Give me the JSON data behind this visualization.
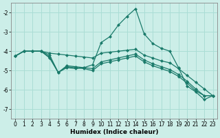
{
  "xlabel": "Humidex (Indice chaleur)",
  "bg_color": "#cceee8",
  "grid_color": "#aaddd5",
  "line_color": "#1a7a6a",
  "xlim": [
    -0.5,
    23.5
  ],
  "ylim": [
    -7.5,
    -1.5
  ],
  "yticks": [
    -7,
    -6,
    -5,
    -4,
    -3,
    -2
  ],
  "xticks": [
    0,
    1,
    2,
    3,
    4,
    5,
    6,
    7,
    8,
    9,
    10,
    11,
    12,
    13,
    14,
    15,
    16,
    17,
    18,
    19,
    20,
    21,
    22,
    23
  ],
  "series": [
    {
      "x": [
        0,
        1,
        2,
        3,
        4,
        5,
        6,
        7,
        8,
        9,
        10,
        11,
        12,
        13,
        14,
        15,
        16,
        17,
        18,
        19,
        20,
        21,
        22,
        23
      ],
      "y": [
        -4.25,
        -4.0,
        -4.0,
        -4.0,
        -4.2,
        -5.1,
        -4.85,
        -4.9,
        -4.85,
        -4.7,
        -3.55,
        -3.25,
        -2.65,
        -2.2,
        -1.8,
        -3.1,
        -3.6,
        -3.85,
        -4.0,
        -4.85,
        -5.8,
        -6.1,
        -6.5,
        -6.3
      ]
    },
    {
      "x": [
        0,
        1,
        2,
        3,
        4,
        5,
        6,
        7,
        8,
        9,
        10,
        11,
        12,
        13,
        14,
        15,
        16,
        17,
        18,
        19,
        20,
        21,
        22,
        23
      ],
      "y": [
        -4.25,
        -4.0,
        -4.0,
        -4.0,
        -4.1,
        -4.15,
        -4.2,
        -4.25,
        -4.3,
        -4.35,
        -4.1,
        -4.05,
        -4.0,
        -3.95,
        -3.9,
        -4.2,
        -4.35,
        -4.5,
        -4.6,
        -4.9,
        -5.25,
        -5.6,
        -5.95,
        -6.3
      ]
    },
    {
      "x": [
        0,
        1,
        2,
        3,
        4,
        5,
        6,
        7,
        8,
        9,
        10,
        11,
        12,
        13,
        14,
        15,
        16,
        17,
        18,
        19,
        20,
        21,
        22,
        23
      ],
      "y": [
        -4.25,
        -4.0,
        -4.0,
        -4.0,
        -4.3,
        -5.1,
        -4.75,
        -4.8,
        -4.85,
        -4.9,
        -4.55,
        -4.45,
        -4.35,
        -4.25,
        -4.15,
        -4.45,
        -4.65,
        -4.8,
        -4.95,
        -5.2,
        -5.55,
        -5.95,
        -6.3,
        -6.3
      ]
    },
    {
      "x": [
        0,
        1,
        2,
        3,
        4,
        5,
        6,
        7,
        8,
        9,
        10,
        11,
        12,
        13,
        14,
        15,
        16,
        17,
        18,
        19,
        20,
        21,
        22,
        23
      ],
      "y": [
        -4.25,
        -4.0,
        -4.0,
        -4.0,
        -4.35,
        -5.1,
        -4.8,
        -4.85,
        -4.9,
        -5.0,
        -4.65,
        -4.55,
        -4.45,
        -4.35,
        -4.25,
        -4.55,
        -4.75,
        -4.9,
        -5.05,
        -5.3,
        -5.65,
        -6.05,
        -6.3,
        -6.3
      ]
    }
  ],
  "marker": "D",
  "markersize": 2.0,
  "linewidth": 0.9,
  "tick_fontsize": 5.5,
  "label_fontsize": 6.5
}
